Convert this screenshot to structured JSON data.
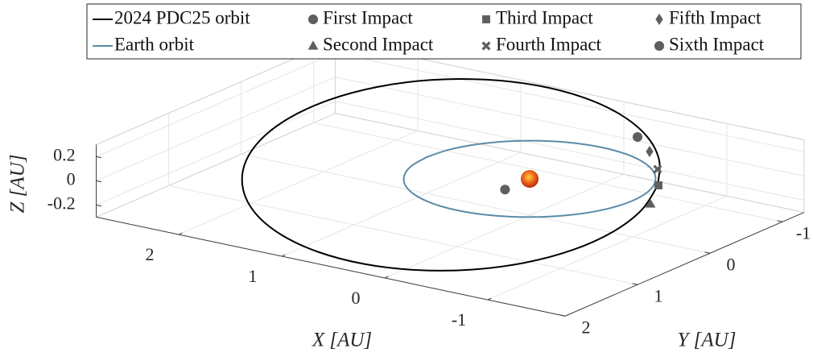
{
  "chart_data": {
    "type": "line3d",
    "xlabel": "X [AU]",
    "ylabel": "Y [AU]",
    "zlabel": "Z [AU]",
    "xlim": [
      -1.75,
      2.8
    ],
    "ylim": [
      -1.3,
      2.0
    ],
    "zlim": [
      -0.3,
      0.3
    ],
    "xticks": [
      -1,
      0,
      1,
      2
    ],
    "yticks": [
      -1,
      0,
      1,
      2
    ],
    "zticks": [
      -0.2,
      0,
      0.2
    ],
    "grid": true,
    "series": [
      {
        "name": "2024 PDC25 orbit",
        "color": "#000000",
        "x": [
          -0.935,
          -0.714,
          -0.407,
          -0.032,
          0.383,
          0.812,
          1.224,
          1.593,
          1.892,
          2.101,
          2.206,
          2.199,
          2.082,
          1.861,
          1.554,
          1.179,
          0.764,
          0.335,
          -0.078,
          -0.446,
          -0.745,
          -0.954,
          -1.059,
          -1.052,
          -0.935
        ],
        "y": [
          -0.437,
          -0.773,
          -1.04,
          -1.217,
          -1.294,
          -1.263,
          -1.127,
          -0.898,
          -0.589,
          -0.221,
          0.18,
          0.587,
          0.972,
          1.309,
          1.576,
          1.753,
          1.829,
          1.798,
          1.663,
          1.433,
          1.124,
          0.757,
          0.356,
          -0.051,
          -0.437
        ],
        "z": [
          0,
          0.08,
          0.154,
          0.218,
          0.267,
          0.298,
          0.308,
          0.298,
          0.267,
          0.218,
          0.154,
          0.08,
          0,
          -0.08,
          -0.154,
          -0.218,
          -0.267,
          -0.298,
          -0.308,
          -0.298,
          -0.267,
          -0.218,
          -0.154,
          -0.08,
          0
        ]
      },
      {
        "name": "Earth orbit",
        "color": "#5b8ba8",
        "x": [
          1,
          0.966,
          0.866,
          0.707,
          0.5,
          0.259,
          0,
          -0.259,
          -0.5,
          -0.707,
          -0.866,
          -0.966,
          -1,
          -0.966,
          -0.866,
          -0.707,
          -0.5,
          -0.259,
          0,
          0.259,
          0.5,
          0.707,
          0.866,
          0.966,
          1
        ],
        "y": [
          0,
          0.259,
          0.5,
          0.707,
          0.866,
          0.966,
          1,
          0.966,
          0.866,
          0.707,
          0.5,
          0.259,
          0,
          -0.259,
          -0.5,
          -0.707,
          -0.866,
          -0.966,
          -1,
          -0.966,
          -0.866,
          -0.707,
          -0.5,
          -0.259,
          0
        ],
        "z": [
          0,
          0,
          0,
          0,
          0,
          0,
          0,
          0,
          0,
          0,
          0,
          0,
          0,
          0,
          0,
          0,
          0,
          0,
          0,
          0,
          0,
          0,
          0,
          0,
          0
        ]
      },
      {
        "name": "First Impact",
        "marker": "circle",
        "color": "#5f5f5f",
        "x": [
          -0.074
        ],
        "y": [
          -1.384
        ],
        "z": [
          0
        ]
      },
      {
        "name": "Second Impact",
        "marker": "triangle",
        "color": "#5f5f5f",
        "x": [
          -1.164
        ],
        "y": [
          -0.011
        ],
        "z": [
          0
        ]
      },
      {
        "name": "Third Impact",
        "marker": "square",
        "color": "#5f5f5f",
        "x": [
          -0.938
        ],
        "y": [
          -0.444
        ],
        "z": [
          0
        ]
      },
      {
        "name": "Fourth Impact",
        "marker": "cross",
        "color": "#5f5f5f",
        "x": [
          -0.69
        ],
        "y": [
          -0.785
        ],
        "z": [
          0
        ]
      },
      {
        "name": "Fifth Impact",
        "marker": "diamond",
        "color": "#5f5f5f",
        "x": [
          -0.371
        ],
        "y": [
          -1.128
        ],
        "z": [
          0
        ]
      },
      {
        "name": "Sixth Impact",
        "marker": "circle",
        "color": "#5f5f5f",
        "x": [
          1.286e-09
        ],
        "y": [
          0.34
        ],
        "z": [
          0
        ]
      }
    ]
  }
}
